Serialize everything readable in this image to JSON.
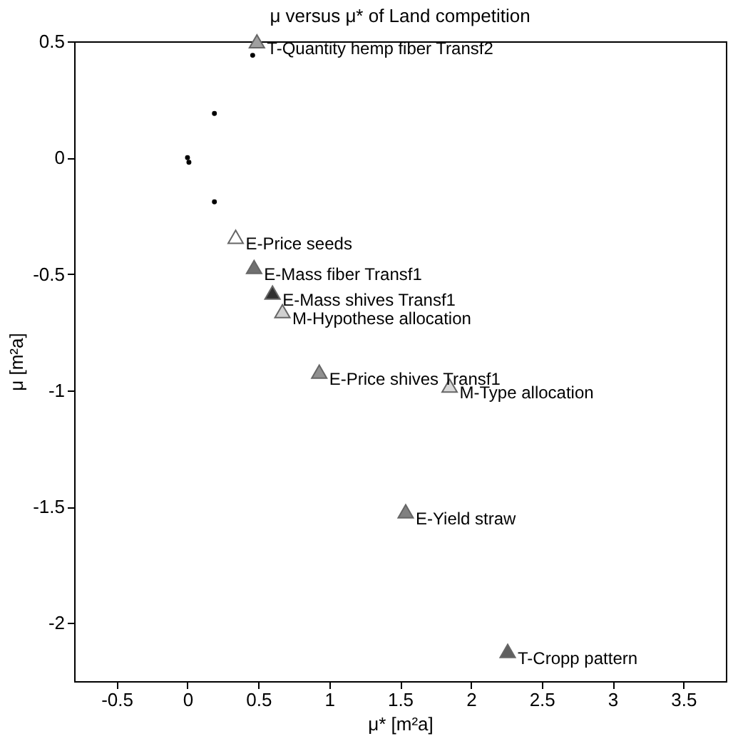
{
  "chart_data": {
    "type": "scatter",
    "title": "μ versus μ* of Land competition",
    "xlabel": "μ* [m²a]",
    "ylabel": "μ [m²a]",
    "xlim": [
      -0.8,
      3.8
    ],
    "xticks": [
      -0.5,
      0,
      0.5,
      1,
      1.5,
      2,
      2.5,
      3,
      3.5
    ],
    "ylim": [
      -2.25,
      0.5
    ],
    "yticks": [
      -2,
      -1.5,
      -1,
      -0.5,
      0,
      0.5
    ],
    "grid": false,
    "legend": false,
    "series": [
      {
        "type": "scatter",
        "marker": "triangle",
        "x": [
          0.49,
          0.34,
          0.47,
          0.6,
          0.67,
          0.93,
          1.85,
          1.54,
          2.26
        ],
        "values": [
          0.5,
          -0.34,
          -0.47,
          -0.58,
          -0.66,
          -0.92,
          -0.98,
          -1.52,
          -2.12
        ],
        "colors": [
          "#a0a0a0",
          "#ffffff",
          "#707070",
          "#303030",
          "#d0d0d0",
          "#909090",
          "#d8d8d8",
          "#808080",
          "#606060"
        ]
      },
      {
        "type": "scatter",
        "marker": "circle",
        "color": "#000000",
        "x": [
          0,
          0.01,
          0.19,
          0.19,
          0.46
        ],
        "values": [
          0,
          -0.02,
          0.19,
          -0.19,
          0.44
        ]
      }
    ],
    "annotations": [
      {
        "text": "T-Quantity hemp fiber Transf2",
        "x": 0.49,
        "y": 0.5
      },
      {
        "text": "E-Price seeds",
        "x": 0.34,
        "y": -0.34
      },
      {
        "text": "E-Mass fiber Transf1",
        "x": 0.47,
        "y": -0.47
      },
      {
        "text": "E-Mass shives Transf1",
        "x": 0.6,
        "y": -0.58
      },
      {
        "text": "M-Hypothese allocation",
        "x": 0.67,
        "y": -0.66
      },
      {
        "text": "E-Price shives Transf1",
        "x": 0.93,
        "y": -0.92
      },
      {
        "text": "M-Type allocation",
        "x": 1.85,
        "y": -0.98
      },
      {
        "text": "E-Yield straw",
        "x": 1.54,
        "y": -1.52
      },
      {
        "text": "T-Cropp pattern",
        "x": 2.26,
        "y": -2.12
      }
    ]
  }
}
